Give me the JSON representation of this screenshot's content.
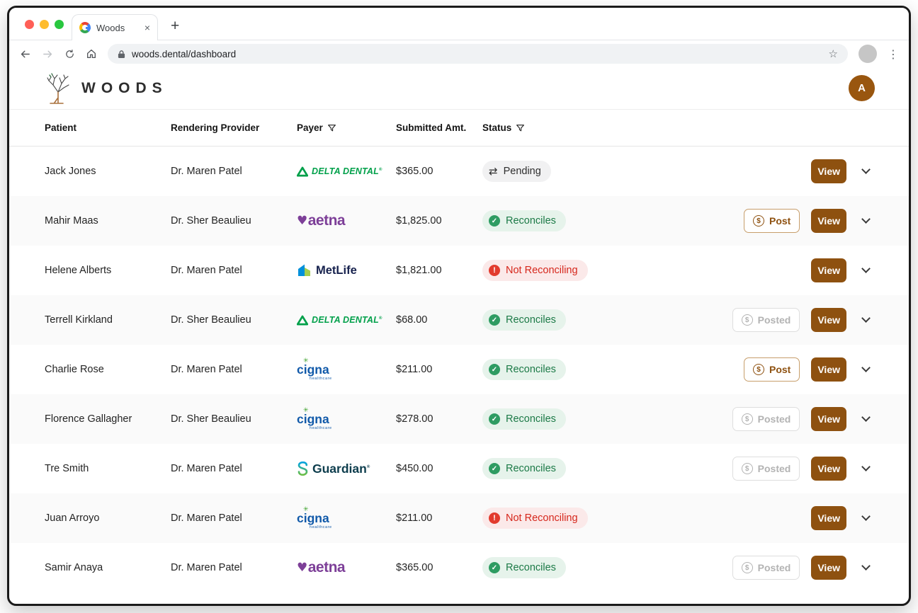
{
  "browser": {
    "tab_title": "Woods",
    "url": "woods.dental/dashboard"
  },
  "header": {
    "brand": "WOODS",
    "avatar_initial": "A"
  },
  "table": {
    "columns": [
      {
        "label": "Patient",
        "filter": false
      },
      {
        "label": "Rendering Provider",
        "filter": false
      },
      {
        "label": "Payer",
        "filter": true
      },
      {
        "label": "Submitted Amt.",
        "filter": false
      },
      {
        "label": "Status",
        "filter": true
      }
    ],
    "rows": [
      {
        "patient": "Jack Jones",
        "provider": "Dr. Maren Patel",
        "payer": "delta",
        "amount": "$365.00",
        "status": "pending",
        "action": "none"
      },
      {
        "patient": "Mahir Maas",
        "provider": "Dr. Sher Beaulieu",
        "payer": "aetna",
        "amount": "$1,825.00",
        "status": "reconciles",
        "action": "post"
      },
      {
        "patient": "Helene Alberts",
        "provider": "Dr. Maren Patel",
        "payer": "metlife",
        "amount": "$1,821.00",
        "status": "not_reconciling",
        "action": "none"
      },
      {
        "patient": "Terrell Kirkland",
        "provider": "Dr. Sher Beaulieu",
        "payer": "delta",
        "amount": "$68.00",
        "status": "reconciles",
        "action": "posted"
      },
      {
        "patient": "Charlie Rose",
        "provider": "Dr. Maren Patel",
        "payer": "cigna",
        "amount": "$211.00",
        "status": "reconciles",
        "action": "post"
      },
      {
        "patient": "Florence Gallagher",
        "provider": "Dr. Sher Beaulieu",
        "payer": "cigna",
        "amount": "$278.00",
        "status": "reconciles",
        "action": "posted"
      },
      {
        "patient": "Tre Smith",
        "provider": "Dr. Maren Patel",
        "payer": "guardian",
        "amount": "$450.00",
        "status": "reconciles",
        "action": "posted"
      },
      {
        "patient": "Juan Arroyo",
        "provider": "Dr. Maren Patel",
        "payer": "cigna",
        "amount": "$211.00",
        "status": "not_reconciling",
        "action": "none"
      },
      {
        "patient": "Samir Anaya",
        "provider": "Dr. Maren Patel",
        "payer": "aetna",
        "amount": "$365.00",
        "status": "reconciles",
        "action": "posted"
      }
    ]
  },
  "payers": {
    "delta": {
      "name": "DELTA DENTAL"
    },
    "aetna": {
      "name": "aetna"
    },
    "metlife": {
      "name": "MetLife"
    },
    "cigna": {
      "name": "cigna",
      "sub": "healthcare"
    },
    "guardian": {
      "name": "Guardian"
    }
  },
  "status_labels": {
    "pending": "Pending",
    "reconciles": "Reconciles",
    "not_reconciling": "Not Reconciling"
  },
  "buttons": {
    "post": "Post",
    "posted": "Posted",
    "view": "View"
  },
  "colors": {
    "accent_brown": "#8E5110",
    "avatar_brown": "#99560F",
    "pending_bg": "#F1F1F2",
    "reconciles_bg": "#E6F3EB",
    "reconciles_text": "#1C7A47",
    "reconciles_icon": "#2E9C62",
    "not_reconciling_bg": "#FBE9E9",
    "not_reconciling_text": "#D6271C",
    "not_reconciling_icon": "#E23B2E",
    "delta_green": "#00A04A",
    "aetna_purple": "#7D3F98",
    "metlife_dark": "#16214D",
    "cigna_blue": "#1059A9",
    "guardian_teal": "#0D3D4D",
    "traffic_red": "#FF5F57",
    "traffic_yellow": "#FEBC2E",
    "traffic_green": "#29C73F"
  }
}
